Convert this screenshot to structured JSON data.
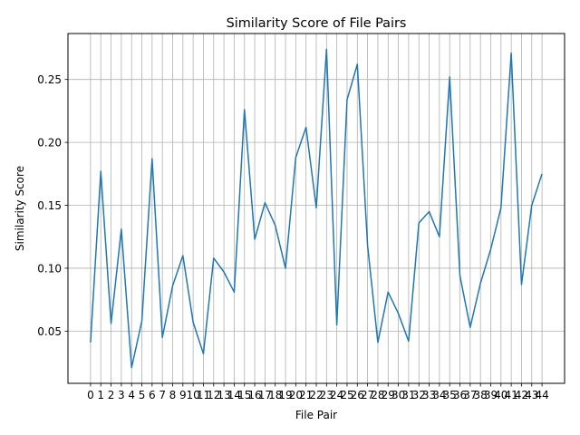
{
  "chart_data": {
    "type": "line",
    "title": "Similarity Score of File Pairs",
    "xlabel": "File Pair",
    "ylabel": "Similarity Score",
    "x": [
      0,
      1,
      2,
      3,
      4,
      5,
      6,
      7,
      8,
      9,
      10,
      11,
      12,
      13,
      14,
      15,
      16,
      17,
      18,
      19,
      20,
      21,
      22,
      23,
      24,
      25,
      26,
      27,
      28,
      29,
      30,
      31,
      32,
      33,
      34,
      35,
      36,
      37,
      38,
      39,
      40,
      41,
      42,
      43,
      44
    ],
    "series": [
      {
        "color": "#1f77b4",
        "values": [
          0.041,
          0.177,
          0.056,
          0.131,
          0.021,
          0.058,
          0.187,
          0.045,
          0.086,
          0.11,
          0.057,
          0.032,
          0.108,
          0.097,
          0.081,
          0.226,
          0.123,
          0.152,
          0.134,
          0.1,
          0.188,
          0.212,
          0.148,
          0.274,
          0.055,
          0.234,
          0.262,
          0.118,
          0.041,
          0.081,
          0.064,
          0.042,
          0.136,
          0.145,
          0.125,
          0.252,
          0.094,
          0.053,
          0.088,
          0.115,
          0.148,
          0.271,
          0.087,
          0.15,
          0.175
        ]
      }
    ],
    "xlim": [
      -2.2,
      46.2
    ],
    "ylim": [
      0.0085,
      0.2865
    ],
    "yticks": [
      0.05,
      0.1,
      0.15,
      0.2,
      0.25
    ],
    "ytick_labels": [
      "0.05",
      "0.10",
      "0.15",
      "0.20",
      "0.25"
    ],
    "grid": true
  }
}
